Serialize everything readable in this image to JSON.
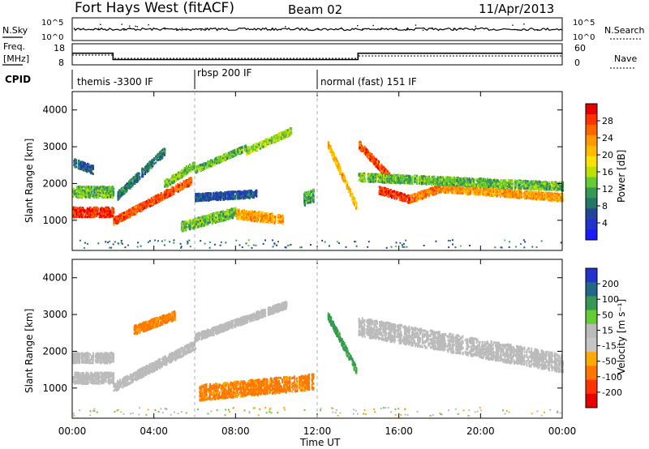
{
  "header": {
    "title": "Fort Hays West (fitACF)",
    "beam": "Beam 02",
    "date": "11/Apr/2013"
  },
  "noise_panel": {
    "left_label": "N.Sky",
    "left_ticks": [
      "10^5",
      "10^0"
    ],
    "right_ticks": [
      "10^5",
      "10^0"
    ],
    "right_label": "N.Search"
  },
  "freq_panel": {
    "left_label_line1": "Freq.",
    "left_label_line2": "[MHz]",
    "left_ticks": [
      "18",
      "8"
    ],
    "right_ticks": [
      "60",
      "0"
    ],
    "right_label": "Nave"
  },
  "cpid": {
    "label": "CPID",
    "segments": [
      "themis -3300 IF",
      "rbsp 200 IF",
      "normal (fast) 151 IF"
    ]
  },
  "power_colorbar": {
    "title": "Power [dB]",
    "ticks": [
      "28",
      "24",
      "20",
      "16",
      "12",
      "8",
      "4"
    ],
    "colors": [
      "#e60000",
      "#ff3300",
      "#ff6600",
      "#ff9900",
      "#ffbb00",
      "#ffe000",
      "#bfe000",
      "#66cc33",
      "#339955",
      "#227766",
      "#224499",
      "#2233cc",
      "#1a1aff"
    ]
  },
  "velocity_colorbar": {
    "title": "Velocity [m s⁻¹]",
    "ticks": [
      "200",
      "100",
      "50",
      "15",
      "-15",
      "-50",
      "-100",
      "-200"
    ],
    "colors": [
      "#2233cc",
      "#226688",
      "#339955",
      "#66cc33",
      "#bbbbbb",
      "#c6c6c6",
      "#ffaa00",
      "#ff7700",
      "#ff3300",
      "#e60000"
    ]
  },
  "chart_data": {
    "type": "heatmap",
    "xlabel": "Time UT",
    "ylabel": "Slant Range [km]",
    "x_ticks": [
      "00:00",
      "04:00",
      "08:00",
      "12:00",
      "16:00",
      "20:00",
      "00:00"
    ],
    "y_ticks": [
      1000,
      2000,
      3000,
      4000
    ],
    "xlim_hours": [
      0,
      24
    ],
    "ylim_km": [
      180,
      4500
    ],
    "freq_mhz": [
      {
        "start_h": 0,
        "end_h": 2,
        "value": 13.5
      },
      {
        "start_h": 2,
        "end_h": 14,
        "value": 10.5
      },
      {
        "start_h": 14,
        "end_h": 24,
        "value": 13.5
      }
    ],
    "cpid_boundaries_h": [
      6.0,
      12.0
    ],
    "power_scatter_bands": [
      {
        "t0": 0.0,
        "t1": 2.0,
        "r0": 1250,
        "r1": 1250,
        "w": 260,
        "db": 28
      },
      {
        "t0": 0.0,
        "t1": 2.0,
        "r0": 1800,
        "r1": 1800,
        "w": 300,
        "db": 12
      },
      {
        "t0": 0.0,
        "t1": 1.0,
        "r0": 2600,
        "r1": 2400,
        "w": 220,
        "db": 6
      },
      {
        "t0": 2.0,
        "t1": 5.8,
        "r0": 1000,
        "r1": 2100,
        "w": 200,
        "db": 26
      },
      {
        "t0": 2.2,
        "t1": 4.5,
        "r0": 1700,
        "r1": 2900,
        "w": 220,
        "db": 8
      },
      {
        "t0": 4.5,
        "t1": 6.0,
        "r0": 2000,
        "r1": 2550,
        "w": 200,
        "db": 12
      },
      {
        "t0": 6.0,
        "t1": 8.5,
        "r0": 2400,
        "r1": 3000,
        "w": 160,
        "db": 12
      },
      {
        "t0": 8.5,
        "t1": 10.7,
        "r0": 2900,
        "r1": 3450,
        "w": 180,
        "db": 14
      },
      {
        "t0": 5.3,
        "t1": 8.0,
        "r0": 850,
        "r1": 1250,
        "w": 260,
        "db": 12
      },
      {
        "t0": 8.0,
        "t1": 10.3,
        "r0": 1200,
        "r1": 1050,
        "w": 260,
        "db": 22
      },
      {
        "t0": 6.0,
        "t1": 9.0,
        "r0": 1650,
        "r1": 1750,
        "w": 200,
        "db": 5
      },
      {
        "t0": 11.3,
        "t1": 11.8,
        "r0": 1600,
        "r1": 1700,
        "w": 350,
        "db": 10
      },
      {
        "t0": 12.5,
        "t1": 13.9,
        "r0": 3100,
        "r1": 1400,
        "w": 180,
        "db": 20
      },
      {
        "t0": 14.0,
        "t1": 15.5,
        "r0": 3100,
        "r1": 2200,
        "w": 220,
        "db": 26
      },
      {
        "t0": 15.0,
        "t1": 16.5,
        "r0": 1850,
        "r1": 1600,
        "w": 200,
        "db": 28
      },
      {
        "t0": 16.5,
        "t1": 18.0,
        "r0": 1600,
        "r1": 1900,
        "w": 200,
        "db": 24
      },
      {
        "t0": 18.0,
        "t1": 24.0,
        "r0": 1900,
        "r1": 1650,
        "w": 200,
        "db": 22
      },
      {
        "t0": 14.0,
        "t1": 24.0,
        "r0": 2200,
        "r1": 1950,
        "w": 220,
        "db": 12
      }
    ],
    "velocity_scatter_bands": [
      {
        "t0": 0.0,
        "t1": 2.0,
        "r0": 1300,
        "r1": 1300,
        "w": 300,
        "v": 0
      },
      {
        "t0": 0.0,
        "t1": 2.0,
        "r0": 1850,
        "r1": 1850,
        "w": 280,
        "v": 0
      },
      {
        "t0": 2.0,
        "t1": 6.0,
        "r0": 1050,
        "r1": 2200,
        "w": 240,
        "v": 0
      },
      {
        "t0": 6.0,
        "t1": 10.5,
        "r0": 2400,
        "r1": 3300,
        "w": 200,
        "v": 0
      },
      {
        "t0": 6.2,
        "t1": 11.8,
        "r0": 900,
        "r1": 1200,
        "w": 420,
        "v": -60
      },
      {
        "t0": 12.5,
        "t1": 13.9,
        "r0": 3000,
        "r1": 1500,
        "w": 200,
        "v": 40
      },
      {
        "t0": 14.0,
        "t1": 24.0,
        "r0": 2700,
        "r1": 1700,
        "w": 500,
        "v": 0
      },
      {
        "t0": 3.0,
        "t1": 5.0,
        "r0": 2600,
        "r1": 3000,
        "w": 240,
        "v": -60
      }
    ]
  }
}
